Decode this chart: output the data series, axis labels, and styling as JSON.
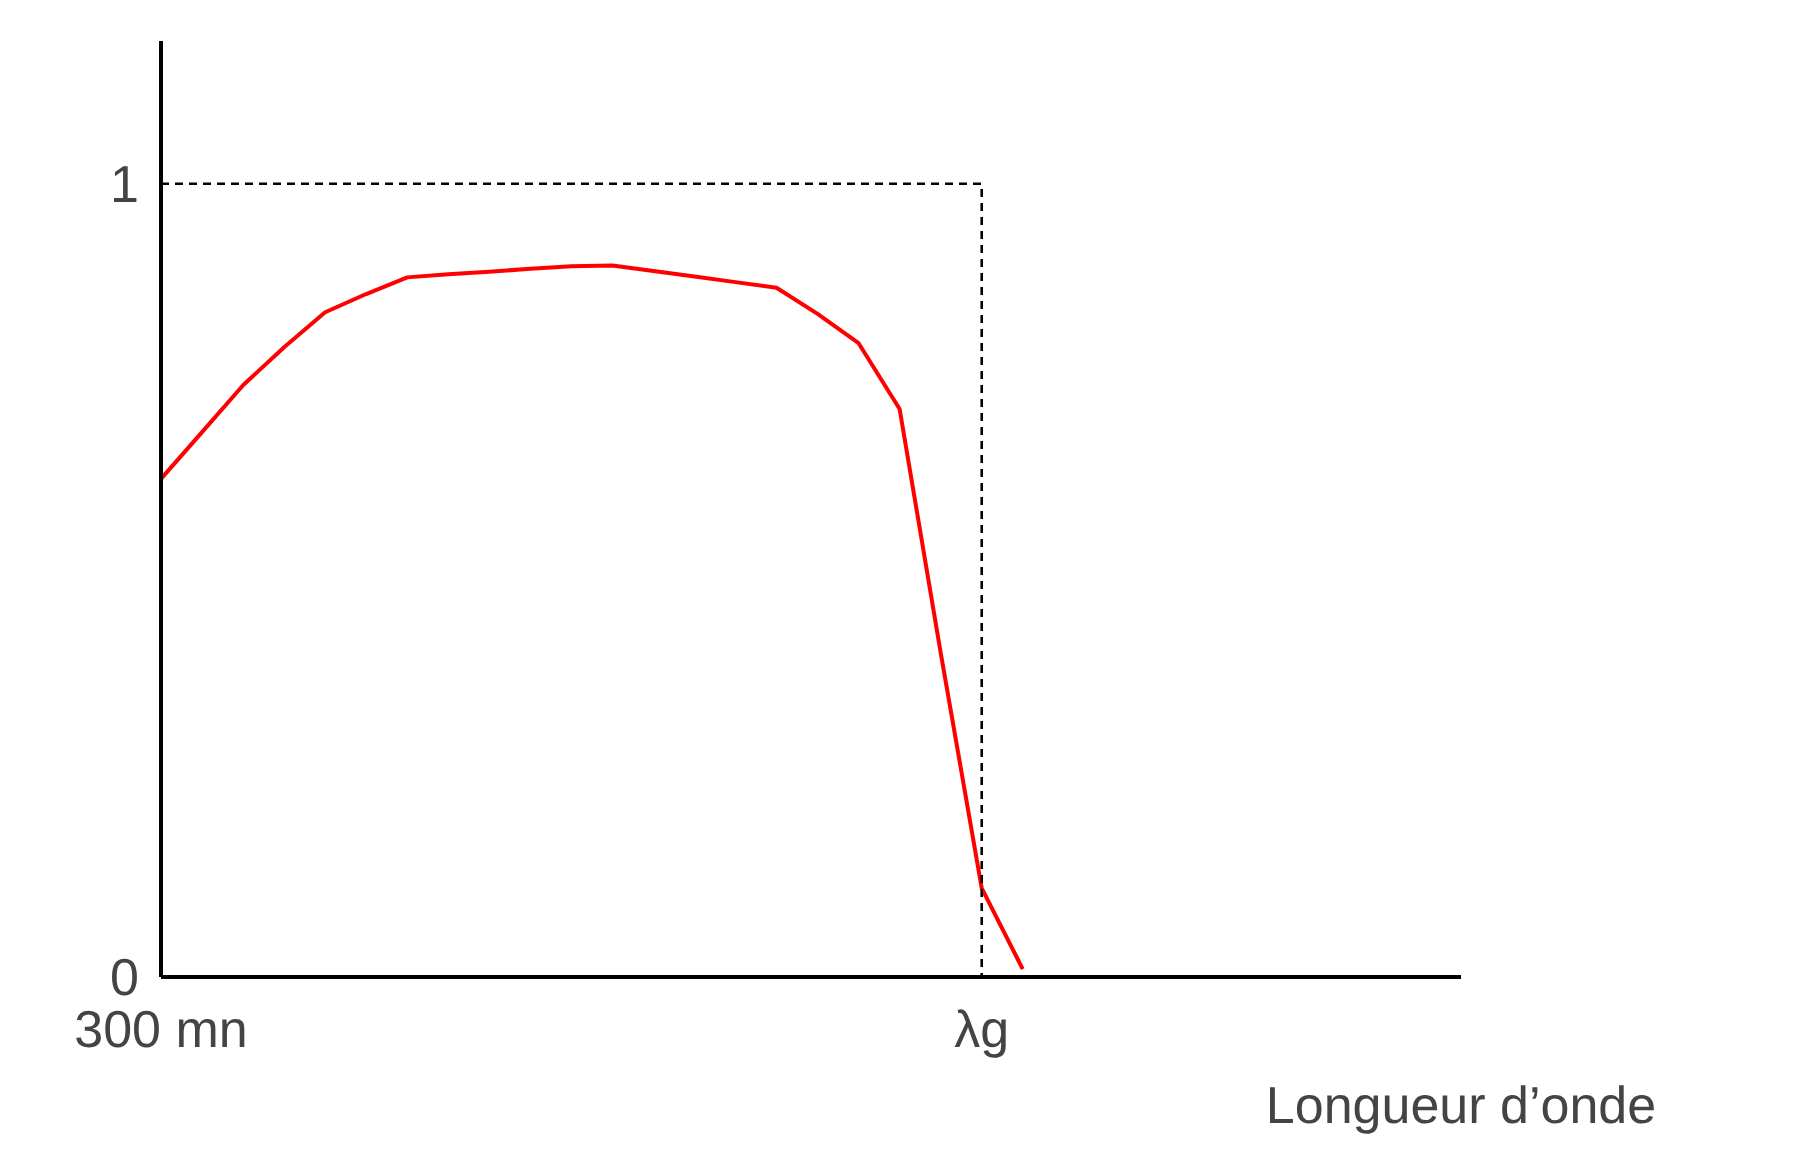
{
  "chart_data": {
    "type": "line",
    "xlabel": "Longueur d’onde",
    "ylim": [
      0,
      1.18
    ],
    "yticks": [
      0,
      1
    ],
    "categories": [
      "300 mn",
      null,
      null,
      null,
      null,
      null,
      null,
      null,
      null,
      null,
      null,
      null,
      null,
      null,
      null,
      null,
      null,
      null,
      null,
      null,
      "λg",
      null,
      null
    ],
    "grid": false,
    "series": [
      {
        "color": "#ff0000",
        "line_style": "solid",
        "values": [
          0.628,
          0.687,
          0.746,
          0.794,
          0.838,
          0.861,
          0.882,
          0.886,
          0.889,
          0.893,
          0.896,
          0.897,
          0.89,
          0.883,
          0.876,
          0.869,
          0.836,
          0.799,
          0.716,
          0.409,
          0.112,
          0.01,
          null
        ]
      },
      {
        "type": "step",
        "color": "#000000",
        "line_style": "dashed",
        "values": [
          1,
          1,
          1,
          1,
          1,
          1,
          1,
          1,
          1,
          1,
          1,
          1,
          1,
          1,
          1,
          1,
          1,
          1,
          1,
          1,
          1,
          0,
          null
        ]
      }
    ]
  }
}
